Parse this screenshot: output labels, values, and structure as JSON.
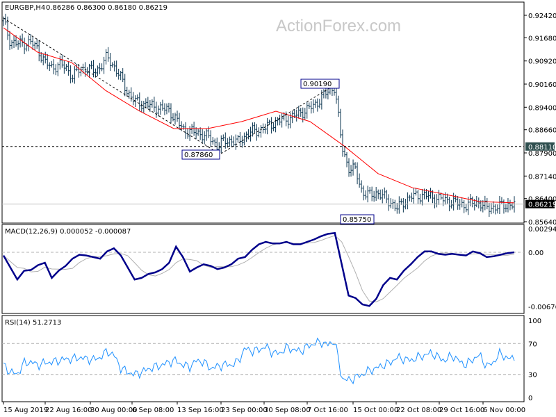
{
  "header": {
    "symbol": "EURGBP,H4",
    "ohlc": "0.86286 0.86300 0.86180 0.86219"
  },
  "watermark": "ActionForex.com",
  "colors": {
    "bars": "#0b3550",
    "ma": "#ff0000",
    "macd": "#00008b",
    "signal": "#b0b0b0",
    "rsi": "#1e90ff",
    "label_bg": "#2f4f4f"
  },
  "chart_data": [
    {
      "type": "bar",
      "subtype": "ohlc",
      "title": "EURGBP,H4",
      "ylim": [
        0.8564,
        0.9242
      ],
      "y_ticks": [
        "0.92420",
        "0.91680",
        "0.90920",
        "0.90160",
        "0.89400",
        "0.88660",
        "0.87900",
        "0.87140",
        "0.86400",
        "0.85640"
      ],
      "x_ticks": [
        "15 Aug 2019",
        "22 Aug 16:00",
        "30 Aug 00:00",
        "6 Sep 08:00",
        "13 Sep 16:00",
        "23 Sep 00:00",
        "30 Sep 08:00",
        "7 Oct 16:00",
        "15 Oct 00:00",
        "22 Oct 08:00",
        "29 Oct 16:00",
        "6 Nov 00:00"
      ],
      "closes": [
        0.9224,
        0.9155,
        0.9148,
        0.915,
        0.9153,
        0.913,
        0.9087,
        0.907,
        0.908,
        0.9072,
        0.9041,
        0.9064,
        0.9068,
        0.9058,
        0.907,
        0.9105,
        0.9075,
        0.9035,
        0.899,
        0.8958,
        0.8953,
        0.8947,
        0.8941,
        0.8935,
        0.893,
        0.89,
        0.8867,
        0.8861,
        0.8856,
        0.885,
        0.8836,
        0.8813,
        0.8828,
        0.8832,
        0.8824,
        0.8847,
        0.886,
        0.8865,
        0.8873,
        0.8887,
        0.8896,
        0.8901,
        0.891,
        0.8921,
        0.8933,
        0.8945,
        0.897,
        0.8992,
        0.9007,
        0.8813,
        0.874,
        0.8733,
        0.866,
        0.865,
        0.866,
        0.8646,
        0.863,
        0.8607,
        0.863,
        0.8645,
        0.865,
        0.8651,
        0.8645,
        0.864,
        0.8635,
        0.863,
        0.8622,
        0.8619,
        0.8625,
        0.8628,
        0.8607,
        0.8612,
        0.8615,
        0.862,
        0.8622
      ],
      "moving_average": [
        0.9201,
        0.9121,
        0.9087,
        0.8995,
        0.8927,
        0.887,
        0.887,
        0.8893,
        0.8927,
        0.8893,
        0.8813,
        0.8722,
        0.8676,
        0.8653,
        0.863,
        0.8626
      ],
      "annotations": {
        "high": "0.90190",
        "low1": "0.87860",
        "low2": "0.85750",
        "level": "0.88110",
        "current": "0.86219"
      },
      "levels": {
        "level": 0.8811,
        "current": 0.86219,
        "high": 0.9019,
        "low1": 0.8786,
        "low2": 0.8575
      }
    },
    {
      "type": "line",
      "title": "MACD(12,26,9) 0.000052 -0.000087",
      "ylim": [
        -0.006761,
        0.002942
      ],
      "y_ticks": [
        "0.002942",
        "0.00",
        "-0.006761"
      ],
      "macd": [
        -0.0004,
        -0.0019,
        -0.0034,
        -0.0023,
        -0.0022,
        -0.0016,
        -0.0013,
        -0.0032,
        -0.0023,
        -0.0017,
        -0.0008,
        -0.0003,
        -0.0004,
        -0.0006,
        -0.0008,
        0.0001,
        0.0005,
        -0.0004,
        -0.0019,
        -0.0034,
        -0.0032,
        -0.0027,
        -0.0025,
        -0.0021,
        -0.0013,
        0.0007,
        -0.0006,
        -0.0024,
        -0.0019,
        -0.0015,
        -0.0017,
        -0.0021,
        -0.0019,
        -0.0015,
        -0.0008,
        -0.0006,
        0.0003,
        0.001,
        0.0013,
        0.0011,
        0.0011,
        0.0013,
        0.001,
        0.001,
        0.0013,
        0.0016,
        0.002,
        0.0023,
        0.0024,
        -0.0015,
        -0.0054,
        -0.0057,
        -0.0065,
        -0.0067,
        -0.0058,
        -0.0041,
        -0.0032,
        -0.0034,
        -0.0023,
        -0.0015,
        -0.0006,
        0.0001,
        0.0001,
        -0.0002,
        -0.0003,
        -0.0002,
        -0.0003,
        -0.0004,
        0.0001,
        -0.0001,
        -0.0006,
        -0.0005,
        -0.0003,
        -0.0001,
        0.0
      ]
    },
    {
      "type": "line",
      "title": "RSI(14) 51.2713",
      "ylim": [
        0,
        100
      ],
      "y_ticks": [
        "100",
        "70",
        "30",
        "0"
      ],
      "levels": [
        70,
        30
      ],
      "values": [
        42,
        33,
        30,
        45,
        46,
        42,
        45,
        46,
        48,
        50,
        50,
        52,
        50,
        49,
        52,
        60,
        55,
        38,
        33,
        30,
        33,
        37,
        40,
        42,
        46,
        48,
        42,
        40,
        48,
        46,
        38,
        40,
        43,
        42,
        47,
        64,
        60,
        62,
        66,
        58,
        57,
        65,
        62,
        60,
        66,
        70,
        72,
        68,
        74,
        25,
        22,
        26,
        30,
        35,
        38,
        42,
        45,
        52,
        50,
        48,
        52,
        55,
        58,
        52,
        48,
        55,
        47,
        42,
        50,
        55,
        40,
        46,
        58,
        50,
        52
      ]
    }
  ]
}
